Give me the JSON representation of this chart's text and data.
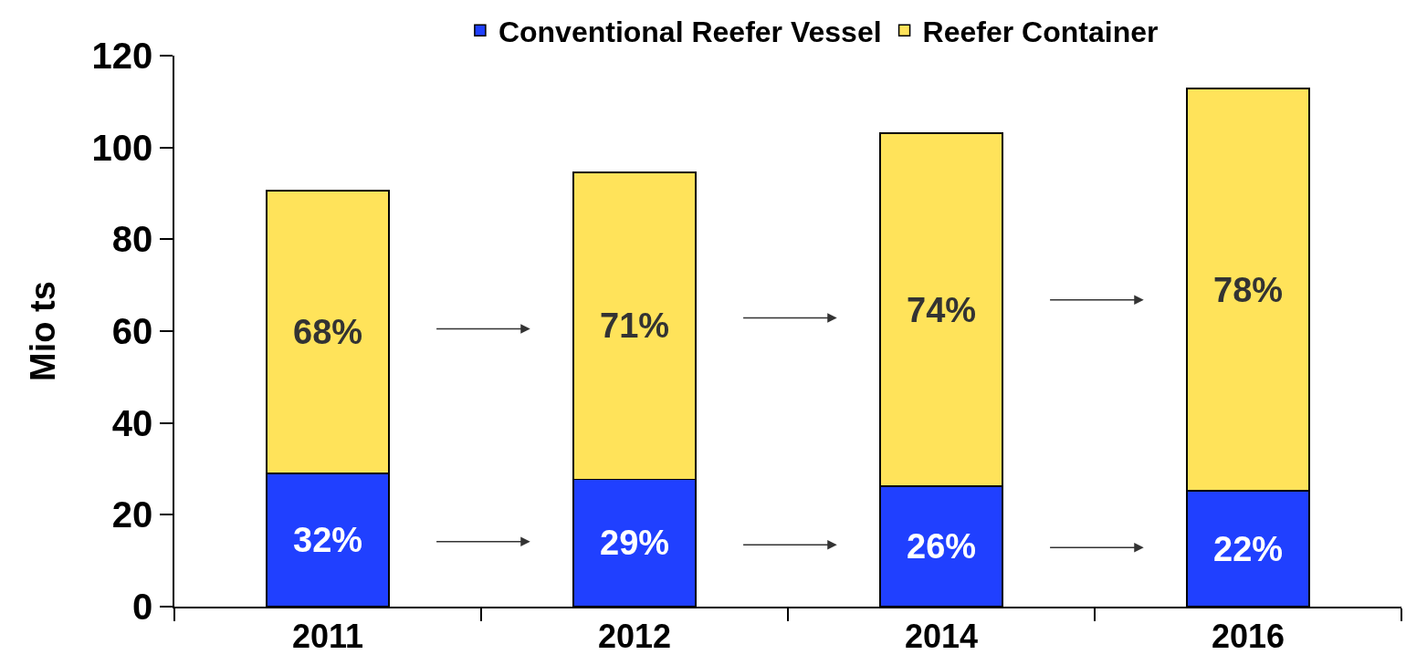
{
  "chart_data": {
    "type": "bar",
    "stacked": true,
    "ylabel": "Mio ts",
    "legend": "top",
    "categories": [
      "2011",
      "2012",
      "2014",
      "2016"
    ],
    "ylim": [
      0,
      120
    ],
    "yticks": [
      0,
      20,
      40,
      60,
      80,
      100,
      120
    ],
    "series": [
      {
        "name": "Conventional Reefer Vessel",
        "color": "#2040ff",
        "values": [
          29,
          27.7,
          26.2,
          25.2
        ]
      },
      {
        "name": "Reefer Container",
        "color": "#ffe35a",
        "values": [
          61.6,
          66.9,
          76.9,
          87.6
        ]
      }
    ],
    "annotations": [
      "68%",
      "71%",
      "74%",
      "78%",
      "32%",
      "29%",
      "26%",
      "22%"
    ]
  }
}
